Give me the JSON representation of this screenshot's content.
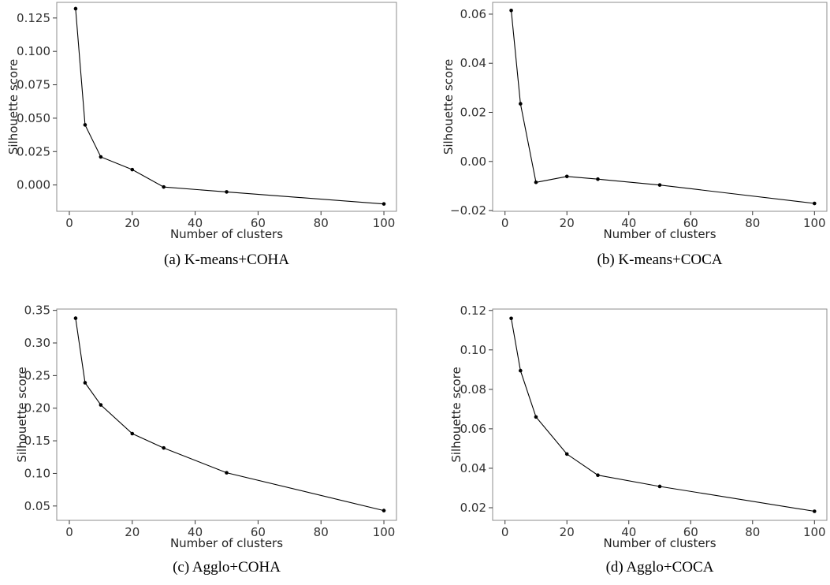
{
  "chart_data": [
    {
      "type": "line",
      "caption": "(a) K-means+COHA",
      "xlabel": "Number of clusters",
      "ylabel": "Silhouette score",
      "xlim": [
        -4,
        104
      ],
      "ylim": [
        -0.0197,
        0.1367
      ],
      "xticks": [
        0,
        20,
        40,
        60,
        80,
        100
      ],
      "xtick_labels": [
        "0",
        "20",
        "40",
        "60",
        "80",
        "100"
      ],
      "yticks": [
        0,
        0.025,
        0.05,
        0.075,
        0.1,
        0.125
      ],
      "ytick_labels": [
        "0.000",
        "0.025",
        "0.050",
        "0.075",
        "0.100",
        "0.125"
      ],
      "grid": false,
      "series": [
        {
          "x": [
            2,
            5,
            10,
            20,
            30,
            50,
            100
          ],
          "y": [
            0.132,
            0.045,
            0.021,
            0.0115,
            -0.0015,
            -0.0052,
            -0.0142
          ]
        }
      ]
    },
    {
      "type": "line",
      "caption": "(b) K-means+COCA",
      "xlabel": "Number of clusters",
      "ylabel": "Silhouette score",
      "xlim": [
        -4,
        104
      ],
      "ylim": [
        -0.0203,
        0.0648
      ],
      "xticks": [
        0,
        20,
        40,
        60,
        80,
        100
      ],
      "xtick_labels": [
        "0",
        "20",
        "40",
        "60",
        "80",
        "100"
      ],
      "yticks": [
        -0.02,
        0,
        0.02,
        0.04,
        0.06
      ],
      "ytick_labels": [
        "−0.02",
        "0.00",
        "0.02",
        "0.04",
        "0.06"
      ],
      "grid": false,
      "series": [
        {
          "x": [
            2,
            5,
            10,
            20,
            30,
            50,
            100
          ],
          "y": [
            0.0615,
            0.0235,
            -0.0085,
            -0.0061,
            -0.0072,
            -0.0096,
            -0.0171
          ]
        }
      ]
    },
    {
      "type": "line",
      "caption": "(c) Agglo+COHA",
      "xlabel": "Number of clusters",
      "ylabel": "Silhouette score",
      "xlim": [
        -4,
        104
      ],
      "ylim": [
        0.028,
        0.352
      ],
      "xticks": [
        0,
        20,
        40,
        60,
        80,
        100
      ],
      "xtick_labels": [
        "0",
        "20",
        "40",
        "60",
        "80",
        "100"
      ],
      "yticks": [
        0.05,
        0.1,
        0.15,
        0.2,
        0.25,
        0.3,
        0.35
      ],
      "ytick_labels": [
        "0.05",
        "0.10",
        "0.15",
        "0.20",
        "0.25",
        "0.30",
        "0.35"
      ],
      "grid": false,
      "series": [
        {
          "x": [
            2,
            5,
            10,
            20,
            30,
            50,
            100
          ],
          "y": [
            0.338,
            0.239,
            0.205,
            0.161,
            0.139,
            0.101,
            0.043
          ]
        }
      ]
    },
    {
      "type": "line",
      "caption": "(d) Agglo+COCA",
      "xlabel": "Number of clusters",
      "ylabel": "Silhouette score",
      "xlim": [
        -4,
        104
      ],
      "ylim": [
        0.0136,
        0.1207
      ],
      "xticks": [
        0,
        20,
        40,
        60,
        80,
        100
      ],
      "xtick_labels": [
        "0",
        "20",
        "40",
        "60",
        "80",
        "100"
      ],
      "yticks": [
        0.02,
        0.04,
        0.06,
        0.08,
        0.1,
        0.12
      ],
      "ytick_labels": [
        "0.02",
        "0.04",
        "0.06",
        "0.08",
        "0.10",
        "0.12"
      ],
      "grid": false,
      "series": [
        {
          "x": [
            2,
            5,
            10,
            20,
            30,
            50,
            100
          ],
          "y": [
            0.116,
            0.0895,
            0.066,
            0.0472,
            0.0365,
            0.0308,
            0.0182
          ]
        }
      ]
    }
  ]
}
